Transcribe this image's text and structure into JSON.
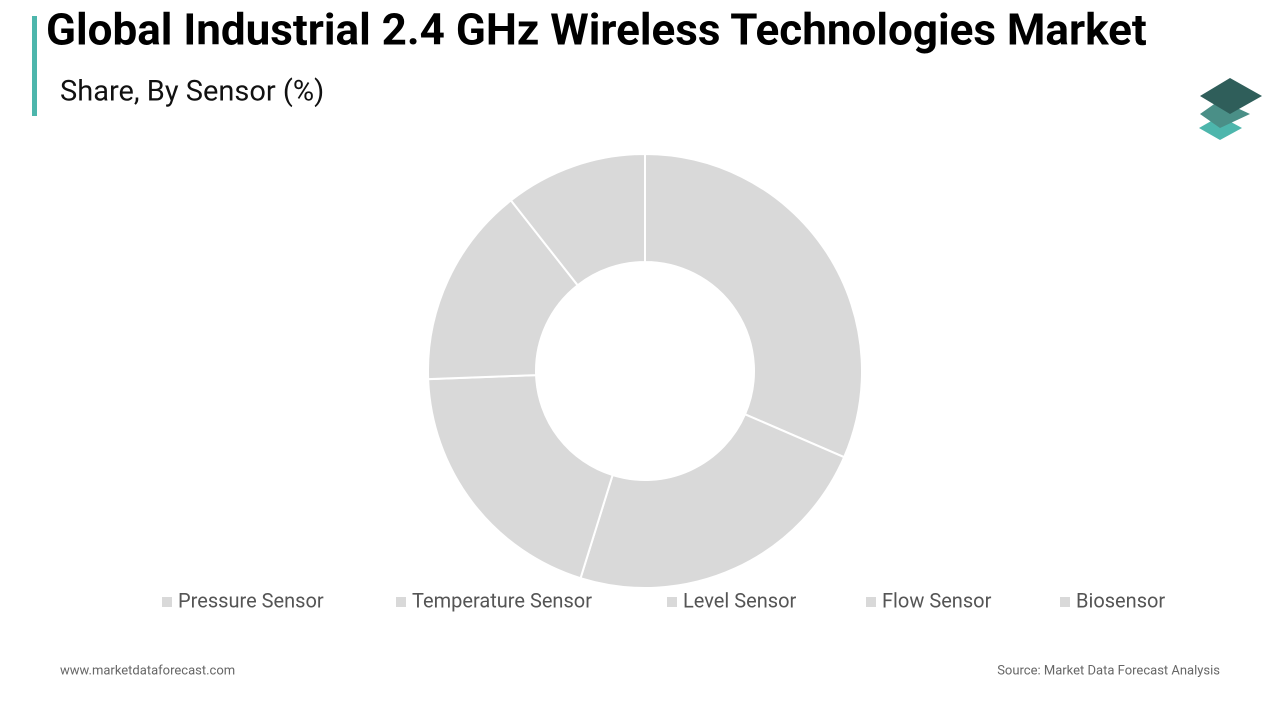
{
  "chart_data": {
    "type": "donut",
    "title": "Global Industrial 2.4 GHz Wireless Technologies Market",
    "subtitle": "Share, By Sensor (%)",
    "categories": [
      "Pressure Sensor",
      "Temperature Sensor",
      "Level Sensor",
      "Flow Sensor",
      "Biosensor"
    ],
    "values": [
      31.5,
      23.3,
      19.6,
      15,
      10.6
    ],
    "color": "#d9d9d9",
    "website": "www.marketdataforecast.com",
    "source": "Source: Market Data Forecast Analysis"
  }
}
